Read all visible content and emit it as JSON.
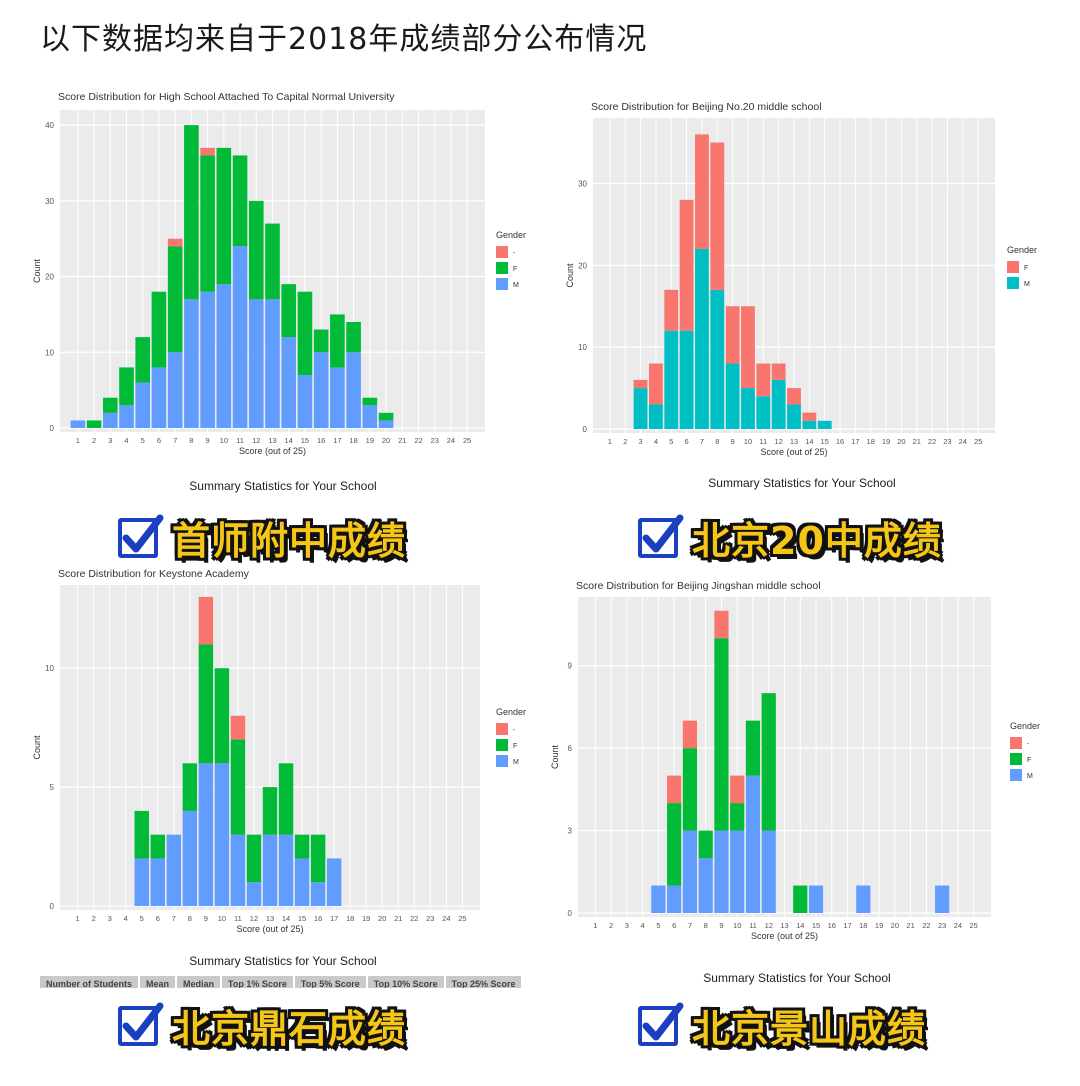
{
  "header": {
    "title": "以下数据均来自于2018年成绩部分公布情况"
  },
  "colors": {
    "dash": "#F8766D",
    "F": "#00BA38",
    "M": "#619CFF",
    "F_two": "#F8766D",
    "M_two": "#00BFC4",
    "panel_bg": "#EBEBEB",
    "banner_text": "#F5C518",
    "checkbox": "#1A3FBF"
  },
  "panels": [
    {
      "id": "capital-normal",
      "banner": "首师附中成绩",
      "summary_title": "Summary Statistics for Your School",
      "chart_data": {
        "type": "bar",
        "title": "Score Distribution for High School Attached To Capital Normal University",
        "xlabel": "Score (out of 25)",
        "ylabel": "Count",
        "categories": [
          "1",
          "2",
          "3",
          "4",
          "5",
          "6",
          "7",
          "8",
          "9",
          "10",
          "11",
          "12",
          "13",
          "14",
          "15",
          "16",
          "17",
          "18",
          "19",
          "20",
          "21",
          "22",
          "23",
          "24",
          "25"
        ],
        "ylim": [
          0,
          42
        ],
        "yticks": [
          0,
          10,
          20,
          30,
          40
        ],
        "legend_title": "Gender",
        "stacked": true,
        "series": [
          {
            "name": "M",
            "values": [
              1,
              0,
              2,
              3,
              6,
              8,
              10,
              17,
              18,
              19,
              24,
              17,
              17,
              12,
              7,
              10,
              8,
              10,
              3,
              1,
              0,
              0,
              0,
              0,
              0
            ]
          },
          {
            "name": "F",
            "values": [
              0,
              1,
              2,
              5,
              6,
              10,
              14,
              23,
              18,
              18,
              12,
              13,
              10,
              7,
              11,
              3,
              7,
              4,
              1,
              1,
              0,
              0,
              0,
              0,
              0
            ]
          },
          {
            "name": "-",
            "values": [
              0,
              0,
              0,
              0,
              0,
              0,
              1,
              0,
              1,
              0,
              0,
              0,
              0,
              0,
              0,
              0,
              0,
              0,
              0,
              0,
              0,
              0,
              0,
              0,
              0
            ]
          }
        ]
      }
    },
    {
      "id": "beijing-20",
      "banner": "北京20中成绩",
      "summary_title": "Summary Statistics for Your School",
      "chart_data": {
        "type": "bar",
        "title": "Score Distribution for Beijing No.20 middle school",
        "xlabel": "Score (out of 25)",
        "ylabel": "Count",
        "categories": [
          "1",
          "2",
          "3",
          "4",
          "5",
          "6",
          "7",
          "8",
          "9",
          "10",
          "11",
          "12",
          "13",
          "14",
          "15",
          "16",
          "17",
          "18",
          "19",
          "20",
          "21",
          "22",
          "23",
          "24",
          "25"
        ],
        "ylim": [
          0,
          38
        ],
        "yticks": [
          0,
          10,
          20,
          30
        ],
        "legend_title": "Gender",
        "stacked": true,
        "series": [
          {
            "name": "M",
            "values": [
              0,
              0,
              5,
              3,
              12,
              12,
              22,
              17,
              8,
              5,
              4,
              6,
              3,
              1,
              1,
              0,
              0,
              0,
              0,
              0,
              0,
              0,
              0,
              0,
              0
            ]
          },
          {
            "name": "F",
            "values": [
              0,
              0,
              1,
              5,
              5,
              16,
              14,
              18,
              7,
              10,
              4,
              2,
              2,
              1,
              0,
              0,
              0,
              0,
              0,
              0,
              0,
              0,
              0,
              0,
              0
            ]
          }
        ]
      }
    },
    {
      "id": "keystone",
      "banner": "北京鼎石成绩",
      "summary_title": "Summary Statistics for Your School",
      "table_headers": [
        "Number of Students",
        "Mean",
        "Median",
        "Top 1% Score",
        "Top 5% Score",
        "Top 10% Score",
        "Top 25% Score"
      ],
      "chart_data": {
        "type": "bar",
        "title": "Score Distribution for Keystone Academy",
        "xlabel": "Score (out of 25)",
        "ylabel": "Count",
        "categories": [
          "1",
          "2",
          "3",
          "4",
          "5",
          "6",
          "7",
          "8",
          "9",
          "10",
          "11",
          "12",
          "13",
          "14",
          "15",
          "16",
          "17",
          "18",
          "19",
          "20",
          "21",
          "22",
          "23",
          "24",
          "25"
        ],
        "ylim": [
          0,
          13.5
        ],
        "yticks": [
          0,
          5,
          10
        ],
        "legend_title": "Gender",
        "stacked": true,
        "series": [
          {
            "name": "M",
            "values": [
              0,
              0,
              0,
              0,
              2,
              2,
              3,
              4,
              6,
              6,
              3,
              1,
              3,
              3,
              2,
              1,
              2,
              0,
              0,
              0,
              0,
              0,
              0,
              0,
              0
            ]
          },
          {
            "name": "F",
            "values": [
              0,
              0,
              0,
              0,
              2,
              1,
              0,
              2,
              5,
              4,
              4,
              2,
              2,
              3,
              1,
              2,
              0,
              0,
              0,
              0,
              0,
              0,
              0,
              0,
              0
            ]
          },
          {
            "name": "-",
            "values": [
              0,
              0,
              0,
              0,
              0,
              0,
              0,
              0,
              2,
              0,
              1,
              0,
              0,
              0,
              0,
              0,
              0,
              0,
              0,
              0,
              0,
              0,
              0,
              0,
              0
            ]
          }
        ]
      }
    },
    {
      "id": "jingshan",
      "banner": "北京景山成绩",
      "summary_title": "Summary Statistics for Your School",
      "chart_data": {
        "type": "bar",
        "title": "Score Distribution for Beijing Jingshan middle school",
        "xlabel": "Score (out of 25)",
        "ylabel": "Count",
        "categories": [
          "1",
          "2",
          "3",
          "4",
          "5",
          "6",
          "7",
          "8",
          "9",
          "10",
          "11",
          "12",
          "13",
          "14",
          "15",
          "16",
          "17",
          "18",
          "19",
          "20",
          "21",
          "22",
          "23",
          "24",
          "25"
        ],
        "ylim": [
          0,
          11.5
        ],
        "yticks": [
          0,
          3,
          6,
          9
        ],
        "legend_title": "Gender",
        "stacked": true,
        "series": [
          {
            "name": "M",
            "values": [
              0,
              0,
              0,
              0,
              1,
              1,
              3,
              2,
              3,
              3,
              5,
              3,
              0,
              0,
              1,
              0,
              0,
              1,
              0,
              0,
              0,
              0,
              1,
              0,
              0
            ]
          },
          {
            "name": "F",
            "values": [
              0,
              0,
              0,
              0,
              0,
              3,
              3,
              1,
              7,
              1,
              2,
              5,
              0,
              1,
              0,
              0,
              0,
              0,
              0,
              0,
              0,
              0,
              0,
              0,
              0
            ]
          },
          {
            "name": "-",
            "values": [
              0,
              0,
              0,
              0,
              0,
              1,
              1,
              0,
              1,
              1,
              0,
              0,
              0,
              0,
              0,
              0,
              0,
              0,
              0,
              0,
              0,
              0,
              0,
              0,
              0
            ]
          }
        ]
      }
    }
  ]
}
